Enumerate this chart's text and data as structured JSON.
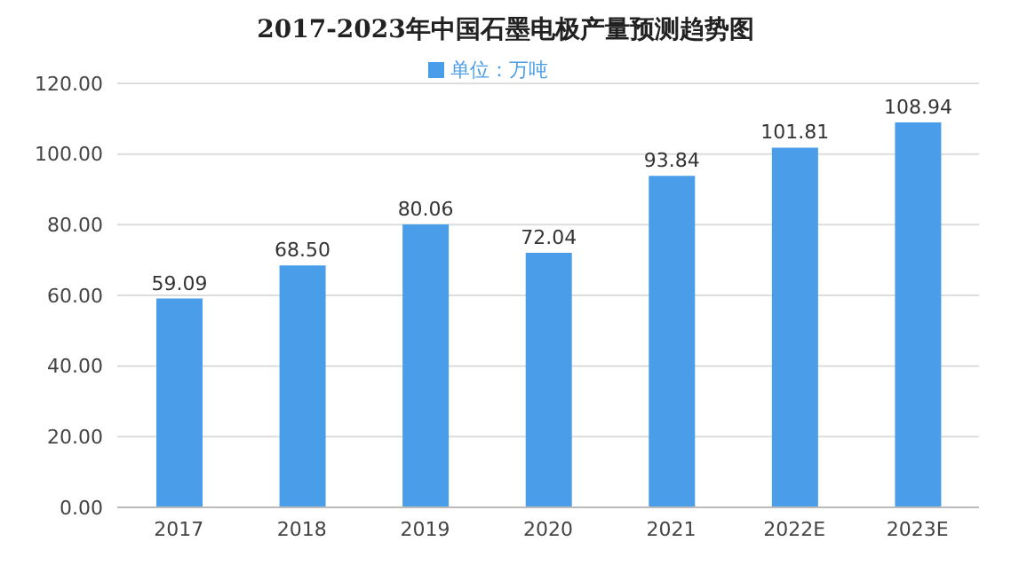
{
  "chart_data": {
    "type": "bar",
    "title": "2017-2023年中国石墨电极产量预测趋势图",
    "categories": [
      "2017",
      "2018",
      "2019",
      "2020",
      "2021",
      "2022E",
      "2023E"
    ],
    "series": [
      {
        "name": "单位：万吨",
        "color": "#4a9de8",
        "values": [
          59.09,
          68.5,
          80.06,
          72.04,
          93.84,
          101.81,
          108.94
        ]
      }
    ],
    "value_labels": [
      "59.09",
      "68.50",
      "80.06",
      "72.04",
      "93.84",
      "101.81",
      "108.94"
    ],
    "ylim": [
      0,
      120
    ],
    "yticks": [
      {
        "value": 0,
        "label": "0.00"
      },
      {
        "value": 20,
        "label": "20.00"
      },
      {
        "value": 40,
        "label": "40.00"
      },
      {
        "value": 60,
        "label": "60.00"
      },
      {
        "value": 80,
        "label": "80.00"
      },
      {
        "value": 100,
        "label": "100.00"
      },
      {
        "value": 120,
        "label": "120.00"
      }
    ],
    "grid": "y",
    "legend": "top"
  }
}
